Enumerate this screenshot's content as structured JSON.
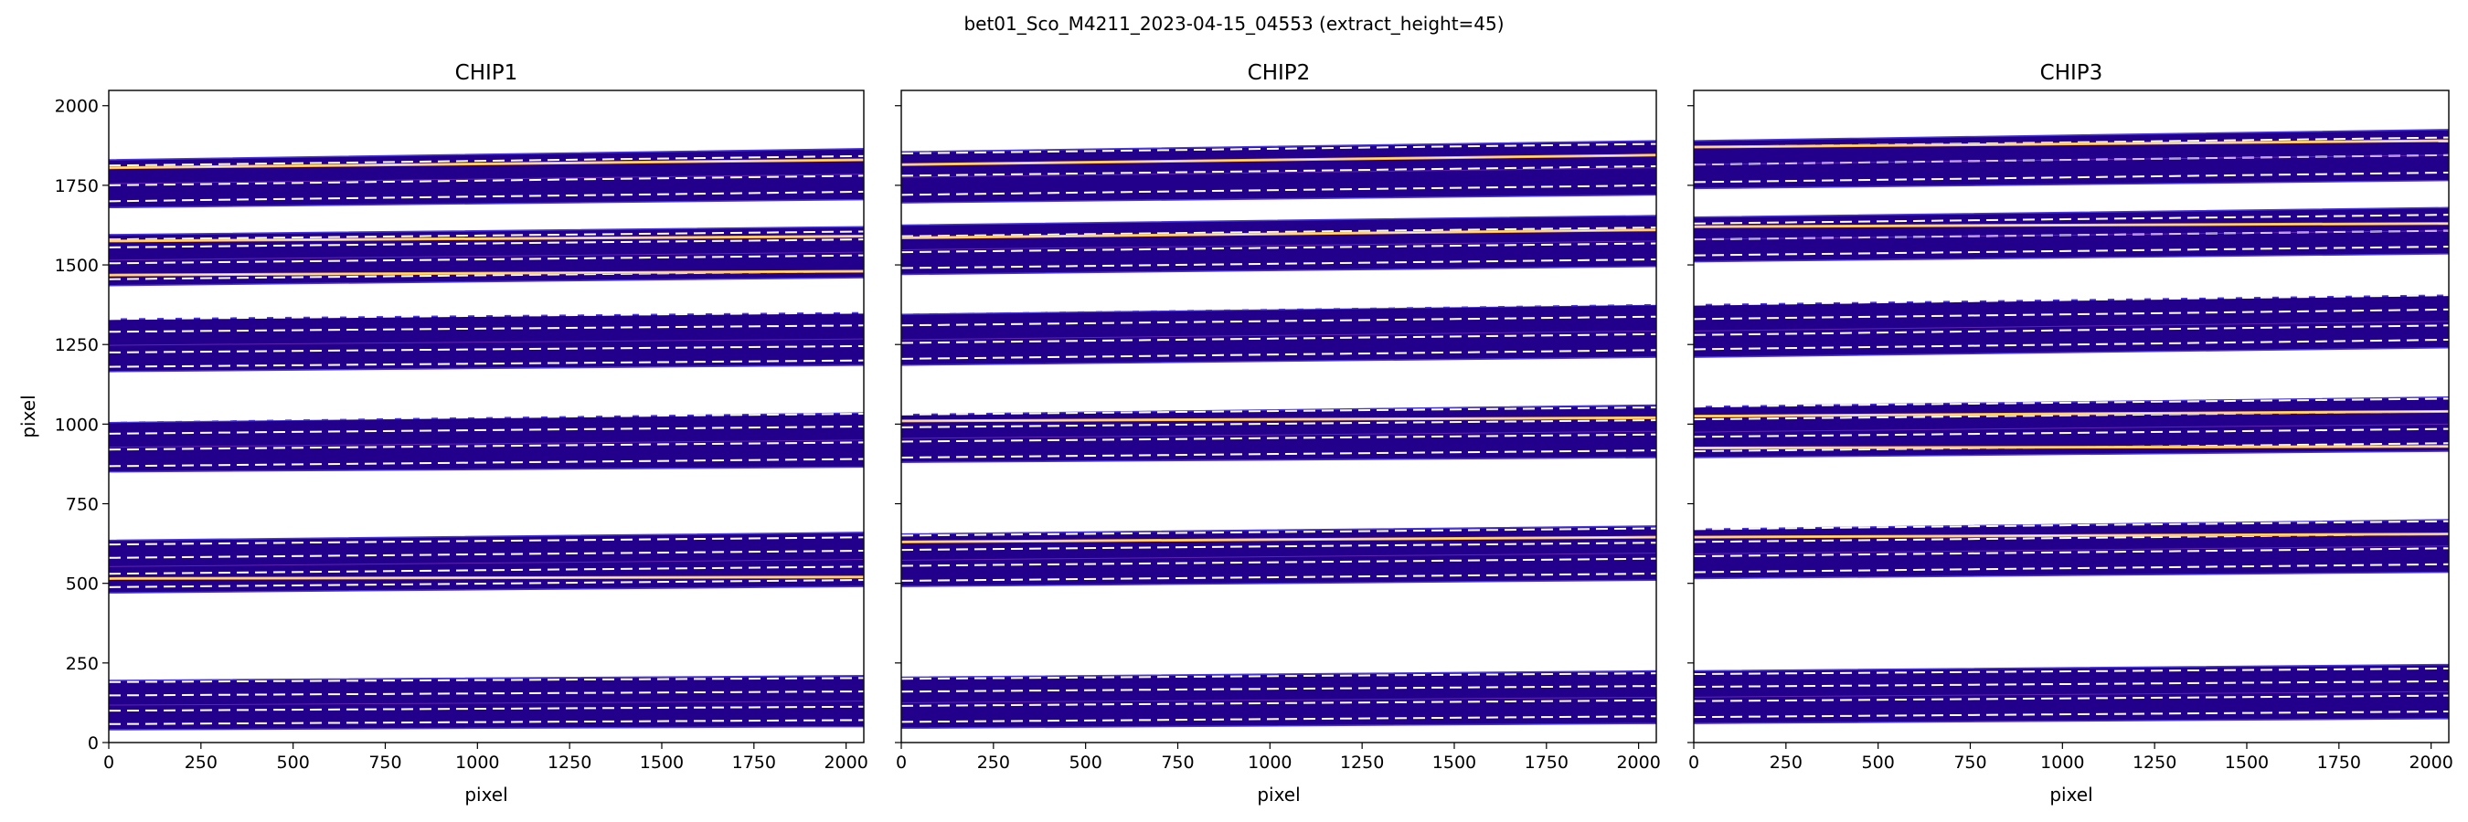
{
  "chart_data": {
    "type": "heatmap",
    "suptitle": "bet01_Sco_M4211_2023-04-15_04553  (extract_height=45)",
    "xlabel": "pixel",
    "ylabel": "pixel",
    "xlim": [
      0,
      2048
    ],
    "ylim": [
      0,
      2048
    ],
    "xticks": [
      0,
      250,
      500,
      750,
      1000,
      1250,
      1500,
      1750,
      2000
    ],
    "yticks": [
      0,
      250,
      500,
      750,
      1000,
      1250,
      1500,
      1750,
      2000
    ],
    "colors": {
      "trace_fill": "#22008c",
      "trace_edge": "#4a38d8",
      "dashed": "#ffffff",
      "bright_line": "#ffb347"
    },
    "panels": [
      {
        "title": "CHIP1",
        "orders": [
          {
            "bottom": [
              1680,
              1705
            ],
            "top": [
              1830,
              1865
            ],
            "dashed": [
              1700,
              1750,
              1812
            ]
          },
          {
            "bottom": [
              1435,
              1460
            ],
            "top": [
              1595,
              1620
            ],
            "dashed": [
              1455,
              1505,
              1555,
              1580
            ]
          },
          {
            "bottom": [
              1165,
              1185
            ],
            "top": [
              1330,
              1350
            ],
            "dashed": [
              1180,
              1225,
              1290,
              1330
            ]
          },
          {
            "bottom": [
              850,
              865
            ],
            "top": [
              1005,
              1035
            ],
            "dashed": [
              868,
              920,
              970,
              1010
            ]
          },
          {
            "bottom": [
              470,
              490
            ],
            "top": [
              635,
              660
            ],
            "dashed": [
              488,
              530,
              580,
              622
            ]
          },
          {
            "bottom": [
              40,
              50
            ],
            "top": [
              195,
              210
            ],
            "dashed": [
              58,
              100,
              148,
              190
            ]
          }
        ],
        "bright": [
          {
            "y": [
              1805,
              1830
            ]
          },
          {
            "y": [
              1575,
              1590
            ]
          },
          {
            "y": [
              1468,
              1480
            ]
          },
          {
            "y": [
              515,
              520
            ]
          }
        ]
      },
      {
        "title": "CHIP2",
        "orders": [
          {
            "bottom": [
              1695,
              1720
            ],
            "top": [
              1855,
              1890
            ],
            "dashed": [
              1720,
              1780,
              1850
            ]
          },
          {
            "bottom": [
              1470,
              1495
            ],
            "top": [
              1625,
              1655
            ],
            "dashed": [
              1490,
              1540,
              1590
            ]
          },
          {
            "bottom": [
              1185,
              1210
            ],
            "top": [
              1345,
              1375
            ],
            "dashed": [
              1205,
              1255,
              1310,
              1350
            ]
          },
          {
            "bottom": [
              880,
              895
            ],
            "top": [
              1030,
              1060
            ],
            "dashed": [
              895,
              945,
              990,
              1030
            ]
          },
          {
            "bottom": [
              490,
              510
            ],
            "top": [
              655,
              680
            ],
            "dashed": [
              508,
              555,
              605,
              650
            ]
          },
          {
            "bottom": [
              45,
              60
            ],
            "top": [
              205,
              225
            ],
            "dashed": [
              65,
              115,
              160,
              200
            ]
          }
        ],
        "bright": [
          {
            "y": [
              1815,
              1845
            ]
          },
          {
            "y": [
              1585,
              1610
            ]
          },
          {
            "y": [
              1010,
              1020
            ]
          },
          {
            "y": [
              630,
              645
            ]
          }
        ]
      },
      {
        "title": "CHIP3",
        "orders": [
          {
            "bottom": [
              1740,
              1765
            ],
            "top": [
              1890,
              1925
            ],
            "dashed": [
              1760,
              1815,
              1870
            ]
          },
          {
            "bottom": [
              1510,
              1535
            ],
            "top": [
              1650,
              1680
            ],
            "dashed": [
              1530,
              1580,
              1630
            ]
          },
          {
            "bottom": [
              1210,
              1240
            ],
            "top": [
              1375,
              1405
            ],
            "dashed": [
              1235,
              1280,
              1330,
              1375
            ]
          },
          {
            "bottom": [
              895,
              915
            ],
            "top": [
              1055,
              1085
            ],
            "dashed": [
              915,
              960,
              1015,
              1055
            ]
          },
          {
            "bottom": [
              515,
              535
            ],
            "top": [
              670,
              700
            ],
            "dashed": [
              535,
              585,
              630,
              670
            ]
          },
          {
            "bottom": [
              60,
              75
            ],
            "top": [
              225,
              245
            ],
            "dashed": [
              80,
              130,
              175,
              215
            ]
          }
        ],
        "bright": [
          {
            "y": [
              1870,
              1890
            ]
          },
          {
            "y": [
              1620,
              1630
            ]
          },
          {
            "y": [
              1025,
              1040
            ]
          },
          {
            "y": [
              925,
              930
            ]
          },
          {
            "y": [
              645,
              655
            ]
          }
        ]
      }
    ]
  }
}
